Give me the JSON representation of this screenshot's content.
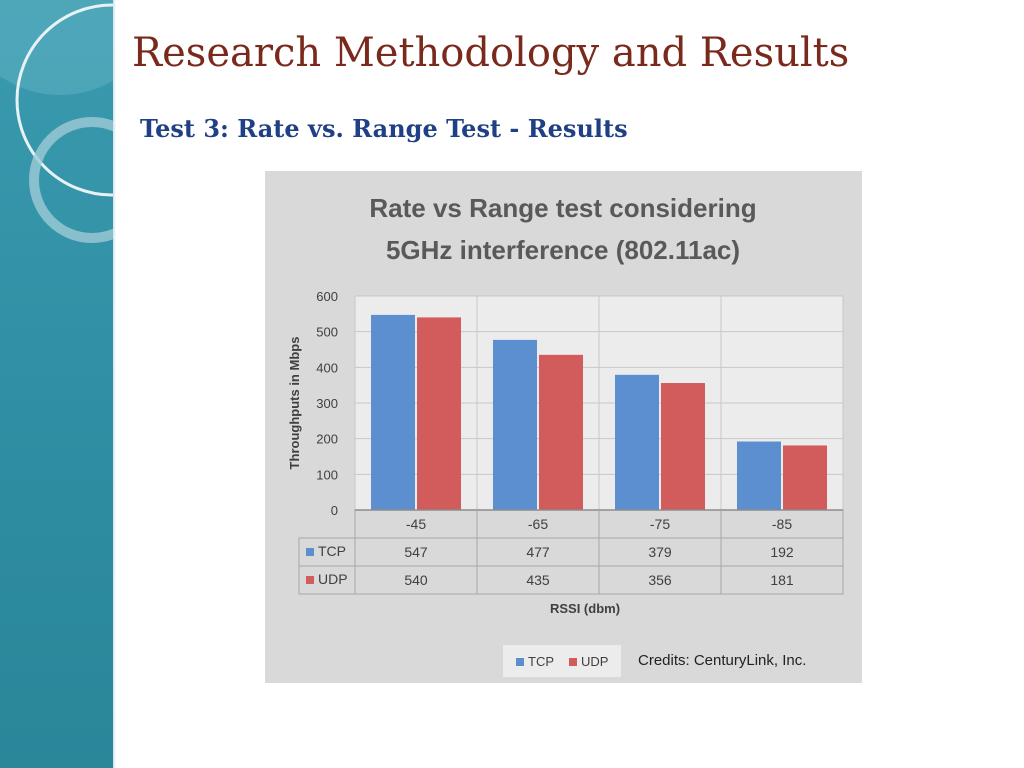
{
  "slide": {
    "title": "Research Methodology and Results",
    "subtitle": "Test 3: Rate vs. Range Test - Results"
  },
  "colors": {
    "sidebar": "#3394a8",
    "title": "#7a2a1c",
    "subtitle": "#1f3f86",
    "chart_background": "#d9d9d9"
  },
  "credits": "Credits: CenturyLink, Inc.",
  "chart_data": {
    "type": "bar",
    "title_lines": [
      "Rate vs Range test considering",
      "5GHz interference (802.11ac)"
    ],
    "xlabel": "RSSI (dbm)",
    "ylabel": "Throughputs in Mbps",
    "categories": [
      "-45",
      "-65",
      "-75",
      "-85"
    ],
    "ylim": [
      0,
      600
    ],
    "yticks": [
      "0",
      "100",
      "200",
      "300",
      "400",
      "500",
      "600"
    ],
    "grid": true,
    "legend_position": "bottom",
    "data_table": true,
    "series": [
      {
        "name": "TCP",
        "color": "#5b8fd0",
        "values": [
          547,
          477,
          379,
          192
        ]
      },
      {
        "name": "UDP",
        "color": "#d25c5c",
        "values": [
          540,
          435,
          356,
          181
        ]
      }
    ]
  }
}
